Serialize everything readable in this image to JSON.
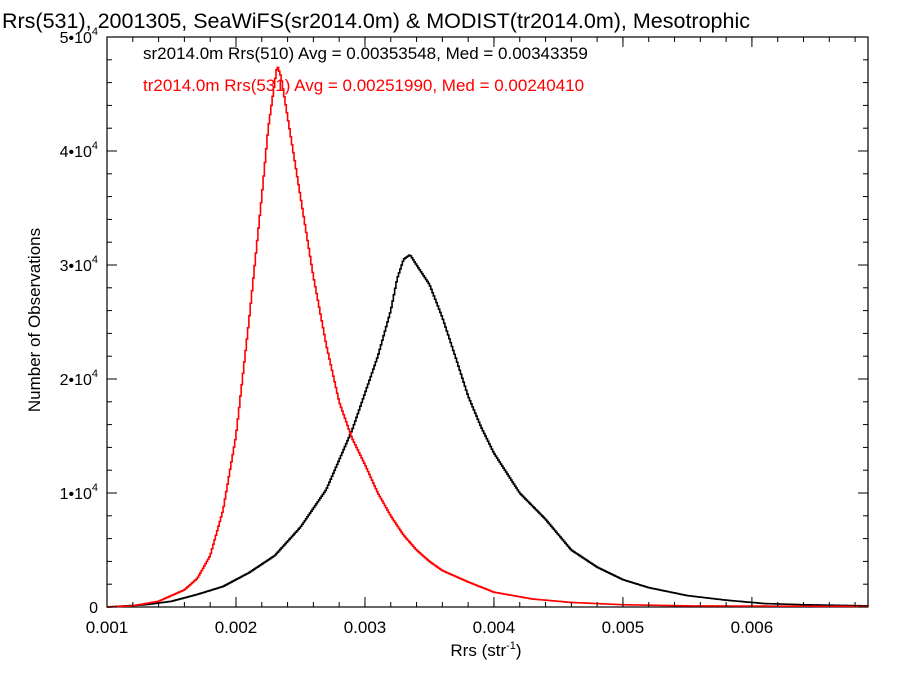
{
  "chart_data": {
    "type": "line",
    "title": "Rrs(531), 2001305, SeaWiFS(sr2014.0m) & MODIST(tr2014.0m), Mesotrophic",
    "xlabel": "Rrs (str",
    "xlabel_sup": "-1",
    "xlabel_suffix": ")",
    "ylabel": "Number of Observations",
    "xlim": [
      0.001,
      0.0069
    ],
    "ylim": [
      0,
      50000
    ],
    "x_ticks": [
      {
        "value": 0.001,
        "label": "0.001"
      },
      {
        "value": 0.002,
        "label": "0.002"
      },
      {
        "value": 0.003,
        "label": "0.003"
      },
      {
        "value": 0.004,
        "label": "0.004"
      },
      {
        "value": 0.005,
        "label": "0.005"
      },
      {
        "value": 0.006,
        "label": "0.006"
      }
    ],
    "y_ticks": [
      {
        "value": 0,
        "mant": "0",
        "exp": ""
      },
      {
        "value": 10000,
        "mant": "1•10",
        "exp": "4"
      },
      {
        "value": 20000,
        "mant": "2•10",
        "exp": "4"
      },
      {
        "value": 30000,
        "mant": "3•10",
        "exp": "4"
      },
      {
        "value": 40000,
        "mant": "4•10",
        "exp": "4"
      },
      {
        "value": 50000,
        "mant": "5•10",
        "exp": "4"
      }
    ],
    "grid": false,
    "legend_position": "top-left",
    "series": [
      {
        "name": "sr2014.0m Rrs(510) Avg = 0.00353548, Med = 0.00343359",
        "color": "#000000",
        "points": [
          [
            0.001,
            0
          ],
          [
            0.0013,
            200
          ],
          [
            0.0015,
            500
          ],
          [
            0.0017,
            1100
          ],
          [
            0.0019,
            1800
          ],
          [
            0.0021,
            3000
          ],
          [
            0.0023,
            4500
          ],
          [
            0.0025,
            7000
          ],
          [
            0.0027,
            10300
          ],
          [
            0.0029,
            15500
          ],
          [
            0.0031,
            22000
          ],
          [
            0.0032,
            26000
          ],
          [
            0.00325,
            28800
          ],
          [
            0.0033,
            30500
          ],
          [
            0.00335,
            30900
          ],
          [
            0.0034,
            30000
          ],
          [
            0.0035,
            28300
          ],
          [
            0.0036,
            25400
          ],
          [
            0.0037,
            22000
          ],
          [
            0.0038,
            18500
          ],
          [
            0.0039,
            15800
          ],
          [
            0.004,
            13500
          ],
          [
            0.0042,
            10000
          ],
          [
            0.0044,
            7700
          ],
          [
            0.0046,
            5000
          ],
          [
            0.0048,
            3500
          ],
          [
            0.005,
            2400
          ],
          [
            0.0052,
            1700
          ],
          [
            0.0055,
            1000
          ],
          [
            0.0058,
            600
          ],
          [
            0.0061,
            300
          ],
          [
            0.0064,
            200
          ],
          [
            0.0069,
            100
          ]
        ]
      },
      {
        "name": "tr2014.0m Rrs(531) Avg = 0.00251990, Med = 0.00240410",
        "color": "#ff0000",
        "points": [
          [
            0.001,
            0
          ],
          [
            0.0012,
            100
          ],
          [
            0.0014,
            500
          ],
          [
            0.0016,
            1500
          ],
          [
            0.0017,
            2500
          ],
          [
            0.0018,
            4500
          ],
          [
            0.0019,
            8500
          ],
          [
            0.002,
            15000
          ],
          [
            0.0021,
            25000
          ],
          [
            0.0022,
            36000
          ],
          [
            0.00225,
            42000
          ],
          [
            0.0023,
            46000
          ],
          [
            0.00232,
            47500
          ],
          [
            0.00235,
            46500
          ],
          [
            0.0024,
            43000
          ],
          [
            0.0025,
            36000
          ],
          [
            0.0026,
            29000
          ],
          [
            0.0027,
            23000
          ],
          [
            0.0028,
            18000
          ],
          [
            0.0029,
            14800
          ],
          [
            0.003,
            12500
          ],
          [
            0.0031,
            10000
          ],
          [
            0.0032,
            8000
          ],
          [
            0.0033,
            6300
          ],
          [
            0.0034,
            5000
          ],
          [
            0.0035,
            4000
          ],
          [
            0.0036,
            3200
          ],
          [
            0.0038,
            2200
          ],
          [
            0.004,
            1300
          ],
          [
            0.0043,
            700
          ],
          [
            0.0046,
            400
          ],
          [
            0.005,
            200
          ],
          [
            0.0055,
            100
          ],
          [
            0.0069,
            50
          ]
        ]
      }
    ]
  }
}
